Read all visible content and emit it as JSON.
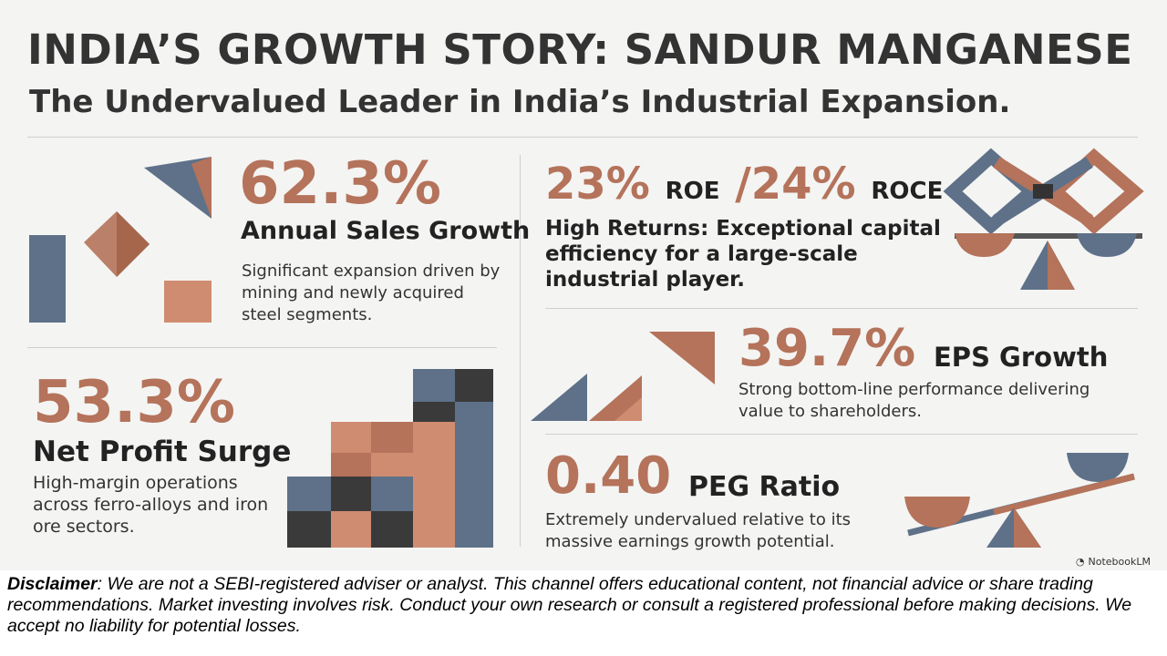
{
  "header": {
    "title": "INDIA’S GROWTH STORY: SANDUR MANGANESE",
    "subtitle": "The Undervalued Leader in India’s Industrial Expansion."
  },
  "metrics": {
    "sales": {
      "value": "62.3%",
      "label": "Annual Sales Growth",
      "desc": "Significant expansion driven by mining and newly acquired steel segments."
    },
    "returns": {
      "roe_value": "23%",
      "roe_label": "ROE",
      "separator": "/",
      "roce_value": "24%",
      "roce_label": "ROCE",
      "desc": "High Returns: Exceptional capital efficiency for a large-scale industrial player."
    },
    "profit": {
      "value": "53.3%",
      "label": "Net Profit Surge",
      "desc": "High-margin operations across ferro-alloys and iron ore sectors."
    },
    "eps": {
      "value": "39.7%",
      "label": "EPS Growth",
      "desc": "Strong bottom-line performance delivering value to shareholders."
    },
    "peg": {
      "value": "0.40",
      "label": "PEG Ratio",
      "desc": "Extremely undervalued relative to its massive earnings growth potential."
    }
  },
  "brand": {
    "name": "NotebookLM"
  },
  "disclaimer": {
    "heading": "Disclaimer",
    "text": ": We are not a SEBI-registered adviser or analyst. This channel offers educational content, not financial advice or share trading recommendations. Market investing involves risk. Conduct your own research or consult a registered professional before making decisions. We accept no liability for potential losses."
  },
  "colors": {
    "accent": "#b4735a",
    "slate": "#5e7189",
    "dark": "#3a3a3a",
    "background": "#f4f4f3"
  },
  "icons": [
    "geometric-shapes-icon",
    "infinity-balance-icon",
    "bar-blocks-icon",
    "triangles-icon",
    "seesaw-icon",
    "notebook-logo-icon"
  ]
}
